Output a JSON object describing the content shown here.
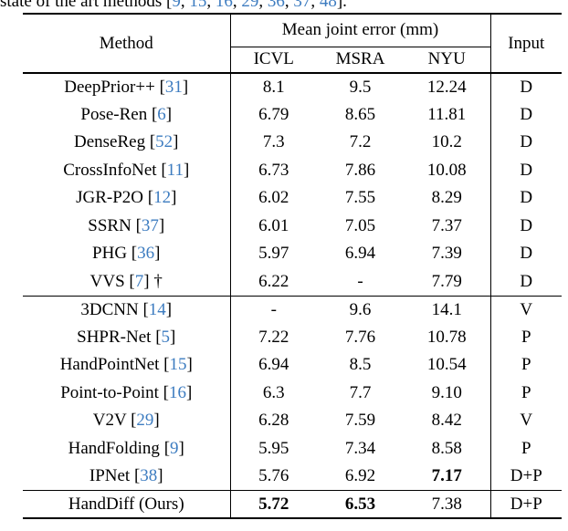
{
  "caption": {
    "prefix": "state of the art methods [",
    "citations": [
      "9",
      "15",
      "16",
      "29",
      "36",
      "37",
      "48"
    ],
    "separator": ", ",
    "suffix": "]."
  },
  "colors": {
    "citation_blue": "#3d7cc0",
    "text": "#000000",
    "rule": "#000000"
  },
  "table": {
    "header": {
      "method": "Method",
      "group": "Mean joint error (mm)",
      "datasets": [
        "ICVL",
        "MSRA",
        "NYU"
      ],
      "input": "Input"
    },
    "sections": [
      {
        "rows": [
          {
            "method": "DeepPrior++",
            "cite": "31",
            "suffix": "",
            "values": [
              {
                "v": "8.1",
                "b": false
              },
              {
                "v": "9.5",
                "b": false
              },
              {
                "v": "12.24",
                "b": false
              }
            ],
            "input": "D"
          },
          {
            "method": "Pose-Ren",
            "cite": "6",
            "suffix": "",
            "values": [
              {
                "v": "6.79",
                "b": false
              },
              {
                "v": "8.65",
                "b": false
              },
              {
                "v": "11.81",
                "b": false
              }
            ],
            "input": "D"
          },
          {
            "method": "DenseReg",
            "cite": "52",
            "suffix": "",
            "values": [
              {
                "v": "7.3",
                "b": false
              },
              {
                "v": "7.2",
                "b": false
              },
              {
                "v": "10.2",
                "b": false
              }
            ],
            "input": "D"
          },
          {
            "method": "CrossInfoNet",
            "cite": "11",
            "suffix": "",
            "values": [
              {
                "v": "6.73",
                "b": false
              },
              {
                "v": "7.86",
                "b": false
              },
              {
                "v": "10.08",
                "b": false
              }
            ],
            "input": "D"
          },
          {
            "method": "JGR-P2O",
            "cite": "12",
            "suffix": "",
            "values": [
              {
                "v": "6.02",
                "b": false
              },
              {
                "v": "7.55",
                "b": false
              },
              {
                "v": "8.29",
                "b": false
              }
            ],
            "input": "D"
          },
          {
            "method": "SSRN",
            "cite": "37",
            "suffix": "",
            "values": [
              {
                "v": "6.01",
                "b": false
              },
              {
                "v": "7.05",
                "b": false
              },
              {
                "v": "7.37",
                "b": false
              }
            ],
            "input": "D"
          },
          {
            "method": "PHG",
            "cite": "36",
            "suffix": "",
            "values": [
              {
                "v": "5.97",
                "b": false
              },
              {
                "v": "6.94",
                "b": false
              },
              {
                "v": "7.39",
                "b": false
              }
            ],
            "input": "D"
          },
          {
            "method": "VVS",
            "cite": "7",
            "suffix": " †",
            "values": [
              {
                "v": "6.22",
                "b": false
              },
              {
                "v": "-",
                "b": false
              },
              {
                "v": "7.79",
                "b": false
              }
            ],
            "input": "D"
          }
        ]
      },
      {
        "rows": [
          {
            "method": "3DCNN",
            "cite": "14",
            "suffix": "",
            "values": [
              {
                "v": "-",
                "b": false
              },
              {
                "v": "9.6",
                "b": false
              },
              {
                "v": "14.1",
                "b": false
              }
            ],
            "input": "V"
          },
          {
            "method": "SHPR-Net",
            "cite": "5",
            "suffix": "",
            "values": [
              {
                "v": "7.22",
                "b": false
              },
              {
                "v": "7.76",
                "b": false
              },
              {
                "v": "10.78",
                "b": false
              }
            ],
            "input": "P"
          },
          {
            "method": "HandPointNet",
            "cite": "15",
            "suffix": "",
            "values": [
              {
                "v": "6.94",
                "b": false
              },
              {
                "v": "8.5",
                "b": false
              },
              {
                "v": "10.54",
                "b": false
              }
            ],
            "input": "P"
          },
          {
            "method": "Point-to-Point",
            "cite": "16",
            "suffix": "",
            "values": [
              {
                "v": "6.3",
                "b": false
              },
              {
                "v": "7.7",
                "b": false
              },
              {
                "v": "9.10",
                "b": false
              }
            ],
            "input": "P"
          },
          {
            "method": "V2V",
            "cite": "29",
            "suffix": "",
            "values": [
              {
                "v": "6.28",
                "b": false
              },
              {
                "v": "7.59",
                "b": false
              },
              {
                "v": "8.42",
                "b": false
              }
            ],
            "input": "V"
          },
          {
            "method": "HandFolding",
            "cite": "9",
            "suffix": "",
            "values": [
              {
                "v": "5.95",
                "b": false
              },
              {
                "v": "7.34",
                "b": false
              },
              {
                "v": "8.58",
                "b": false
              }
            ],
            "input": "P"
          },
          {
            "method": "IPNet",
            "cite": "38",
            "suffix": "",
            "values": [
              {
                "v": "5.76",
                "b": false
              },
              {
                "v": "6.92",
                "b": false
              },
              {
                "v": "7.17",
                "b": true
              }
            ],
            "input": "D+P"
          }
        ]
      },
      {
        "rows": [
          {
            "method": "HandDiff (Ours)",
            "cite": null,
            "suffix": "",
            "values": [
              {
                "v": "5.72",
                "b": true
              },
              {
                "v": "6.53",
                "b": true
              },
              {
                "v": "7.38",
                "b": false
              }
            ],
            "input": "D+P"
          }
        ]
      }
    ]
  }
}
